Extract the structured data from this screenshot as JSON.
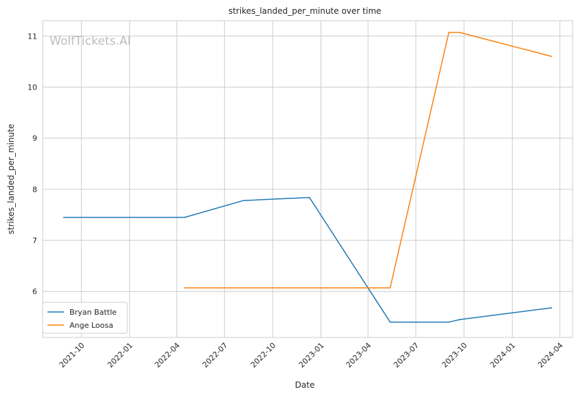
{
  "chart_data": {
    "type": "line",
    "title": "strikes_landed_per_minute over time",
    "xlabel": "Date",
    "ylabel": "strikes_landed_per_minute",
    "watermark": "WolfTickets.AI",
    "x_type": "date",
    "xlim": [
      "2021-07-19",
      "2024-04-25"
    ],
    "ylim": [
      5.1,
      11.3
    ],
    "x_ticks": [
      {
        "date": "2021-10-01",
        "label": "2021-10"
      },
      {
        "date": "2022-01-01",
        "label": "2022-01"
      },
      {
        "date": "2022-04-01",
        "label": "2022-04"
      },
      {
        "date": "2022-07-01",
        "label": "2022-07"
      },
      {
        "date": "2022-10-01",
        "label": "2022-10"
      },
      {
        "date": "2023-01-01",
        "label": "2023-01"
      },
      {
        "date": "2023-04-01",
        "label": "2023-04"
      },
      {
        "date": "2023-07-01",
        "label": "2023-07"
      },
      {
        "date": "2023-10-01",
        "label": "2023-10"
      },
      {
        "date": "2024-01-01",
        "label": "2024-01"
      },
      {
        "date": "2024-04-01",
        "label": "2024-04"
      }
    ],
    "y_ticks": [
      {
        "value": 6,
        "label": "6"
      },
      {
        "value": 7,
        "label": "7"
      },
      {
        "value": 8,
        "label": "8"
      },
      {
        "value": 9,
        "label": "9"
      },
      {
        "value": 10,
        "label": "10"
      },
      {
        "value": 11,
        "label": "11"
      }
    ],
    "grid": true,
    "legend_position": "lower-left",
    "series": [
      {
        "name": "Bryan Battle",
        "color": "#1f77b4",
        "points": [
          {
            "x": "2021-08-28",
            "y": 7.45
          },
          {
            "x": "2022-04-16",
            "y": 7.45
          },
          {
            "x": "2022-08-06",
            "y": 7.78
          },
          {
            "x": "2022-12-10",
            "y": 7.84
          },
          {
            "x": "2023-05-13",
            "y": 5.4
          },
          {
            "x": "2023-09-02",
            "y": 5.4
          },
          {
            "x": "2023-09-23",
            "y": 5.45
          },
          {
            "x": "2024-03-16",
            "y": 5.68
          }
        ]
      },
      {
        "name": "Ange Loosa",
        "color": "#ff7f0e",
        "points": [
          {
            "x": "2022-04-16",
            "y": 6.07
          },
          {
            "x": "2023-05-13",
            "y": 6.07
          },
          {
            "x": "2023-09-02",
            "y": 11.07
          },
          {
            "x": "2023-09-23",
            "y": 11.07
          },
          {
            "x": "2024-03-16",
            "y": 10.6
          }
        ]
      }
    ]
  }
}
